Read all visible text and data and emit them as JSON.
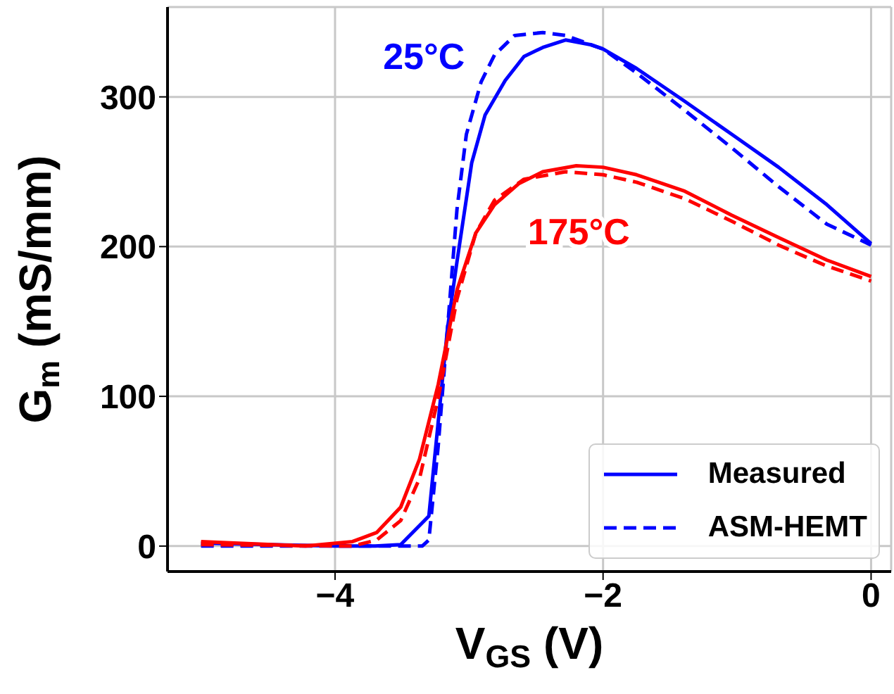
{
  "chart_data": {
    "type": "line",
    "xlabel": "V$_{GS}$ (V)",
    "ylabel": "G$_{m}$ (mS/mm)",
    "xlim": [
      -5.25,
      0.15
    ],
    "ylim": [
      -17,
      360
    ],
    "xticks": [
      {
        "value": -4,
        "label": "−4"
      },
      {
        "value": -2,
        "label": "−2"
      },
      0
    ],
    "yticks": [
      0,
      100,
      200,
      300
    ],
    "grid": true,
    "legend": "bottom right",
    "annotations": [
      "25°C",
      "175°C"
    ],
    "series": [
      {
        "name": "Measured",
        "color": "#0000ff",
        "line_style": "solid",
        "x": [
          -5,
          -4.5,
          -4,
          -3.7,
          -3.51,
          -3.3,
          -3.23,
          -3.16,
          -3.09,
          -2.98,
          -2.88,
          -2.73,
          -2.59,
          -2.45,
          -2.28,
          -2.1,
          -2,
          -1.75,
          -1.39,
          -1.04,
          -0.69,
          -0.33,
          0
        ],
        "values": [
          2,
          1,
          0,
          0,
          1,
          20,
          83,
          146,
          190,
          256,
          288,
          311,
          327,
          333,
          338,
          335,
          332,
          319,
          297,
          275,
          253,
          228,
          202
        ]
      },
      {
        "name": "ASM-HEMT",
        "color": "#0000ff",
        "line_style": "dashed",
        "x": [
          -5,
          -4.5,
          -4,
          -3.6,
          -3.35,
          -3.3,
          -3.23,
          -3.16,
          -3.09,
          -3.02,
          -2.91,
          -2.81,
          -2.66,
          -2.45,
          -2.28,
          -2,
          -1.75,
          -1.39,
          -1.04,
          -0.69,
          -0.33,
          0
        ],
        "values": [
          0,
          0,
          0,
          0,
          0,
          4,
          67,
          146,
          225,
          275,
          310,
          328,
          341,
          343,
          341,
          332,
          316,
          291,
          266,
          240,
          215,
          201
        ]
      },
      {
        "color": "#ff0000",
        "line_style": "solid",
        "x": [
          -5,
          -4.22,
          -3.87,
          -3.69,
          -3.51,
          -3.37,
          -3.23,
          -3.09,
          -2.95,
          -2.81,
          -2.63,
          -2.45,
          -2.2,
          -2,
          -1.75,
          -1.39,
          -1.04,
          -0.69,
          -0.33,
          0
        ],
        "values": [
          3,
          0,
          3,
          9,
          26,
          58,
          108,
          171,
          209,
          228,
          242,
          250,
          254,
          253,
          248,
          237,
          221,
          206,
          191,
          180
        ]
      },
      {
        "color": "#ff0000",
        "line_style": "dashed",
        "x": [
          -5,
          -3.87,
          -3.69,
          -3.51,
          -3.37,
          -3.23,
          -3.09,
          -2.95,
          -2.81,
          -2.59,
          -2.28,
          -2,
          -1.75,
          -1.39,
          -1.04,
          -0.69,
          -0.33,
          0
        ],
        "values": [
          1,
          0,
          4,
          17,
          45,
          99,
          165,
          209,
          231,
          245,
          250,
          248,
          243,
          232,
          217,
          201,
          187,
          177
        ]
      }
    ]
  }
}
